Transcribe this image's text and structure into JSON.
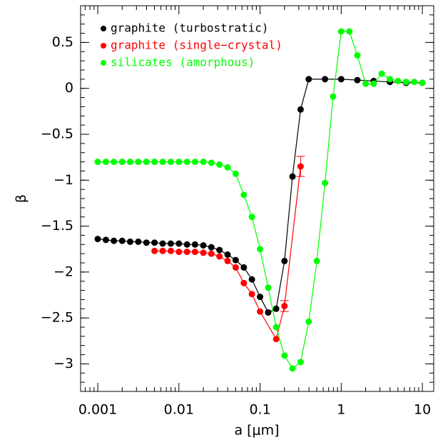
{
  "chart_data": {
    "type": "line",
    "log_x": true,
    "xlabel": "a [μm]",
    "ylabel": "β",
    "xlim": [
      0.000615,
      13.8
    ],
    "ylim": [
      -3.3,
      0.9
    ],
    "xticks": [
      0.001,
      0.01,
      0.1,
      1,
      10
    ],
    "yticks": [
      {
        "value": -3,
        "label": "−3"
      },
      {
        "value": -2.5,
        "label": "−2.5"
      },
      {
        "value": -2,
        "label": "−2"
      },
      {
        "value": -1.5,
        "label": "−1.5"
      },
      {
        "value": -1,
        "label": "−1"
      },
      {
        "value": -0.5,
        "label": "−0.5"
      },
      0,
      0.5
    ],
    "legend": "upper left",
    "series": [
      {
        "name": "graphite (turbostratic)",
        "color": "#000000",
        "x": [
          0.001,
          0.00126,
          0.00158,
          0.002,
          0.00251,
          0.00316,
          0.00398,
          0.00501,
          0.00631,
          0.00794,
          0.01,
          0.0126,
          0.0158,
          0.02,
          0.0251,
          0.0316,
          0.0398,
          0.0501,
          0.0631,
          0.0794,
          0.1,
          0.126,
          0.158,
          0.2,
          0.251,
          0.316,
          0.398,
          0.631,
          1,
          1.58,
          2.51,
          3.98,
          6.31,
          10
        ],
        "values": [
          -1.64,
          -1.65,
          -1.66,
          -1.66,
          -1.67,
          -1.67,
          -1.68,
          -1.68,
          -1.69,
          -1.69,
          -1.69,
          -1.7,
          -1.7,
          -1.71,
          -1.73,
          -1.76,
          -1.81,
          -1.87,
          -1.95,
          -2.08,
          -2.27,
          -2.44,
          -2.4,
          -1.88,
          -0.96,
          -0.23,
          0.1,
          0.1,
          0.1,
          0.09,
          0.08,
          0.07,
          0.06,
          0.06
        ]
      },
      {
        "name": "graphite (single−crystal)",
        "color": "#ff0000",
        "x": [
          0.00501,
          0.00631,
          0.00794,
          0.01,
          0.0126,
          0.0158,
          0.02,
          0.0251,
          0.0316,
          0.0398,
          0.0501,
          0.0631,
          0.0794,
          0.1,
          0.158,
          0.2,
          0.316
        ],
        "values": [
          -1.77,
          -1.77,
          -1.77,
          -1.78,
          -1.78,
          -1.78,
          -1.79,
          -1.8,
          -1.83,
          -1.88,
          -1.95,
          -2.12,
          -2.24,
          -2.43,
          -2.73,
          -2.37,
          -0.85
        ],
        "errors": [
          null,
          null,
          null,
          null,
          null,
          null,
          null,
          null,
          null,
          null,
          null,
          null,
          null,
          null,
          null,
          0.06,
          0.11
        ]
      },
      {
        "name": "silicates (amorphous)",
        "color": "#00ff00",
        "x": [
          0.001,
          0.00126,
          0.00158,
          0.002,
          0.00251,
          0.00316,
          0.00398,
          0.00501,
          0.00631,
          0.00794,
          0.01,
          0.0126,
          0.0158,
          0.02,
          0.0251,
          0.0316,
          0.0398,
          0.0501,
          0.0631,
          0.0794,
          0.1,
          0.126,
          0.158,
          0.2,
          0.251,
          0.316,
          0.398,
          0.501,
          0.631,
          0.794,
          1,
          1.26,
          1.58,
          2,
          2.51,
          3.16,
          3.98,
          5.01,
          6.31,
          7.94,
          10
        ],
        "values": [
          -0.8,
          -0.8,
          -0.8,
          -0.8,
          -0.8,
          -0.8,
          -0.8,
          -0.8,
          -0.8,
          -0.8,
          -0.8,
          -0.8,
          -0.8,
          -0.8,
          -0.81,
          -0.83,
          -0.86,
          -0.93,
          -1.16,
          -1.4,
          -1.75,
          -2.17,
          -2.6,
          -2.91,
          -3.05,
          -2.98,
          -2.54,
          -1.88,
          -1.03,
          -0.09,
          0.62,
          0.62,
          0.36,
          0.05,
          0.05,
          0.16,
          0.1,
          0.08,
          0.07,
          0.07,
          0.06
        ]
      }
    ]
  }
}
